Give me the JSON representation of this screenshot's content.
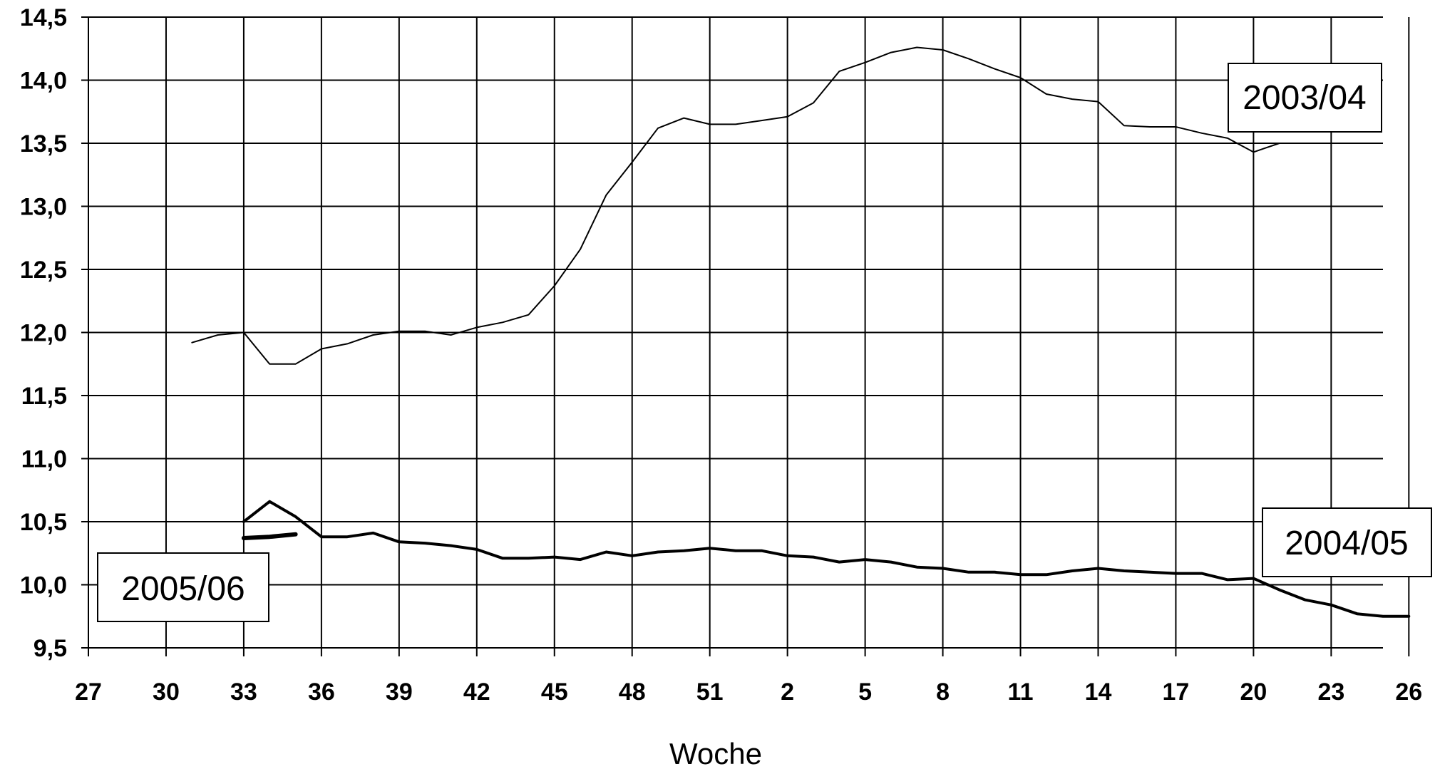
{
  "chart_data": {
    "type": "line",
    "title": "",
    "xlabel": "Woche",
    "ylabel": "",
    "ylim": [
      9.5,
      14.5
    ],
    "yticks": [
      "9,5",
      "10,0",
      "10,5",
      "11,0",
      "11,5",
      "12,0",
      "12,5",
      "13,0",
      "13,5",
      "14,0",
      "14,5"
    ],
    "ytick_values": [
      9.5,
      10.0,
      10.5,
      11.0,
      11.5,
      12.0,
      12.5,
      13.0,
      13.5,
      14.0,
      14.5
    ],
    "xticks": [
      "27",
      "30",
      "33",
      "36",
      "39",
      "42",
      "45",
      "48",
      "51",
      "2",
      "5",
      "8",
      "11",
      "14",
      "17",
      "20",
      "23",
      "26"
    ],
    "x_range": [
      "27",
      "26"
    ],
    "grid": true,
    "series": [
      {
        "name": "2003/04",
        "color": "#000000",
        "x": [
          "31",
          "32",
          "33",
          "34",
          "35",
          "36",
          "37",
          "38",
          "39",
          "40",
          "41",
          "42",
          "43",
          "44",
          "45",
          "46",
          "47",
          "48",
          "49",
          "50",
          "51",
          "52",
          "1",
          "2",
          "3",
          "4",
          "5",
          "6",
          "7",
          "8",
          "9",
          "10",
          "11",
          "12",
          "13",
          "14",
          "15",
          "16",
          "17",
          "18",
          "19",
          "20",
          "21"
        ],
        "values": [
          11.92,
          11.98,
          12.0,
          11.75,
          11.75,
          11.87,
          11.91,
          11.98,
          12.01,
          12.01,
          11.98,
          12.04,
          12.08,
          12.14,
          12.37,
          12.66,
          13.09,
          13.35,
          13.62,
          13.7,
          13.65,
          13.65,
          13.68,
          13.71,
          13.82,
          14.07,
          14.14,
          14.22,
          14.26,
          14.24,
          14.17,
          14.09,
          14.02,
          13.89,
          13.85,
          13.83,
          13.64,
          13.63,
          13.63,
          13.58,
          13.54,
          13.43,
          13.5
        ]
      },
      {
        "name": "2004/05",
        "color": "#000000",
        "x": [
          "33",
          "34",
          "35",
          "36",
          "37",
          "38",
          "39",
          "40",
          "41",
          "42",
          "43",
          "44",
          "45",
          "46",
          "47",
          "48",
          "49",
          "50",
          "51",
          "52",
          "1",
          "2",
          "3",
          "4",
          "5",
          "6",
          "7",
          "8",
          "9",
          "10",
          "11",
          "12",
          "13",
          "14",
          "15",
          "16",
          "17",
          "18",
          "19",
          "20",
          "21",
          "22",
          "23",
          "24",
          "25",
          "26"
        ],
        "values": [
          10.5,
          10.66,
          10.54,
          10.38,
          10.38,
          10.41,
          10.34,
          10.33,
          10.31,
          10.28,
          10.21,
          10.21,
          10.22,
          10.2,
          10.26,
          10.23,
          10.26,
          10.27,
          10.29,
          10.27,
          10.27,
          10.23,
          10.22,
          10.18,
          10.2,
          10.18,
          10.14,
          10.13,
          10.1,
          10.1,
          10.08,
          10.08,
          10.11,
          10.13,
          10.11,
          10.1,
          10.09,
          10.09,
          10.04,
          10.05,
          9.96,
          9.88,
          9.84,
          9.77,
          9.75,
          9.75
        ]
      },
      {
        "name": "2005/06",
        "color": "#000000",
        "x": [
          "33",
          "34",
          "35"
        ],
        "values": [
          10.37,
          10.38,
          10.4
        ]
      }
    ],
    "annotations": [
      "2003/04",
      "2004/05",
      "2005/06"
    ]
  }
}
